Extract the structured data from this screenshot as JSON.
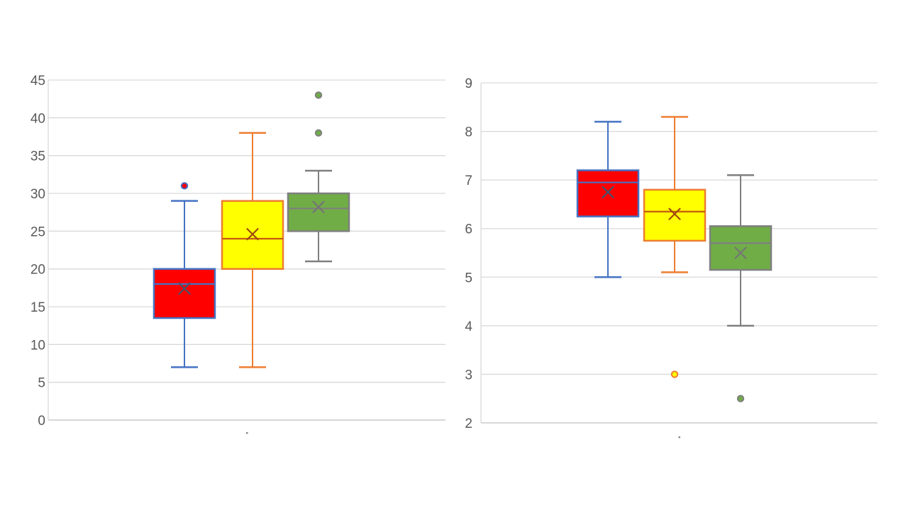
{
  "figure": {
    "background": "#ffffff",
    "description": "Two box-and-whisker plots side by side, Excel style, no titles, no legend"
  },
  "axis_style": {
    "gridline_color": "#d9d9d9",
    "axis_line_color": "#bfbfbf",
    "tick_label_color": "#595959",
    "category_tick_dot_color": "#8c8c8c"
  },
  "chart_data": [
    {
      "type": "boxplot",
      "title": "",
      "xlabel": "",
      "ylabel": "",
      "ylim": [
        0,
        45
      ],
      "yticks": [
        0,
        5,
        10,
        15,
        20,
        25,
        30,
        35,
        40,
        45
      ],
      "grid": true,
      "legend": "none",
      "series": [
        {
          "name": "red-box",
          "min": 7,
          "q1": 13.5,
          "median": 18,
          "mean": 17.4,
          "q3": 20,
          "max": 29,
          "outliers": [
            31
          ],
          "fill": "#ff0000",
          "stroke": "#4472c4",
          "median_color": "#4472c4",
          "mean_color": "#44546a",
          "outlier_fill": "#ff0000",
          "outlier_stroke": "#4472c4"
        },
        {
          "name": "yellow-box",
          "min": 7,
          "q1": 20,
          "median": 24,
          "mean": 24.6,
          "q3": 29,
          "max": 38,
          "outliers": [],
          "fill": "#ffff00",
          "stroke": "#ed7d31",
          "median_color": "#c55a11",
          "mean_color": "#9e480e",
          "outlier_fill": "#ffff00",
          "outlier_stroke": "#ed7d31"
        },
        {
          "name": "green-box",
          "min": 21,
          "q1": 25,
          "median": 28,
          "mean": 28.2,
          "q3": 30,
          "max": 33,
          "outliers": [
            38,
            43
          ],
          "fill": "#70ad47",
          "stroke": "#7f7f7f",
          "median_color": "#7f7f7f",
          "mean_color": "#757575",
          "outlier_fill": "#70ad47",
          "outlier_stroke": "#7f7f7f"
        }
      ]
    },
    {
      "type": "boxplot",
      "title": "",
      "xlabel": "",
      "ylabel": "",
      "ylim": [
        2,
        9
      ],
      "yticks": [
        2,
        3,
        4,
        5,
        6,
        7,
        8,
        9
      ],
      "grid": true,
      "legend": "none",
      "series": [
        {
          "name": "red-box",
          "min": 5,
          "q1": 6.25,
          "median": 6.95,
          "mean": 6.75,
          "q3": 7.2,
          "max": 8.2,
          "outliers": [],
          "fill": "#ff0000",
          "stroke": "#4472c4",
          "median_color": "#4472c4",
          "mean_color": "#44546a",
          "outlier_fill": "#ff0000",
          "outlier_stroke": "#4472c4"
        },
        {
          "name": "yellow-box",
          "min": 5.1,
          "q1": 5.75,
          "median": 6.35,
          "mean": 6.3,
          "q3": 6.8,
          "max": 8.3,
          "outliers": [
            3
          ],
          "fill": "#ffff00",
          "stroke": "#ed7d31",
          "median_color": "#c55a11",
          "mean_color": "#9e480e",
          "outlier_fill": "#ffff00",
          "outlier_stroke": "#ed7d31"
        },
        {
          "name": "green-box",
          "min": 4,
          "q1": 5.15,
          "median": 5.7,
          "mean": 5.5,
          "q3": 6.05,
          "max": 7.1,
          "outliers": [
            2.5
          ],
          "fill": "#70ad47",
          "stroke": "#7f7f7f",
          "median_color": "#7f7f7f",
          "mean_color": "#757575",
          "outlier_fill": "#70ad47",
          "outlier_stroke": "#7f7f7f"
        }
      ]
    }
  ]
}
